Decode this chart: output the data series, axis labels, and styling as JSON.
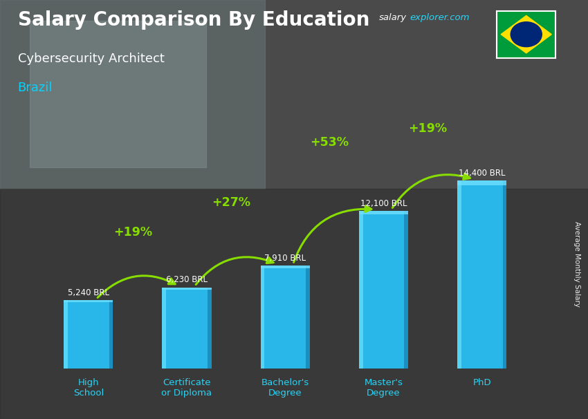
{
  "title": "Salary Comparison By Education",
  "subtitle": "Cybersecurity Architect",
  "country": "Brazil",
  "site_white": "salary",
  "site_cyan": "explorer.com",
  "categories": [
    "High\nSchool",
    "Certificate\nor Diploma",
    "Bachelor's\nDegree",
    "Master's\nDegree",
    "PhD"
  ],
  "values": [
    5240,
    6230,
    7910,
    12100,
    14400
  ],
  "value_labels": [
    "5,240 BRL",
    "6,230 BRL",
    "7,910 BRL",
    "12,100 BRL",
    "14,400 BRL"
  ],
  "pct_changes": [
    "+19%",
    "+27%",
    "+53%",
    "+19%"
  ],
  "bar_color_main": "#29b6e8",
  "bar_color_light": "#55d4f5",
  "bar_color_dark": "#1a90c0",
  "bar_color_face": "#0e78a8",
  "title_color": "#ffffff",
  "subtitle_color": "#ffffff",
  "country_color": "#00d4ff",
  "cat_label_color": "#29d4f5",
  "arrow_color": "#88dd00",
  "pct_color": "#88dd00",
  "value_color": "#ffffff",
  "site_white_color": "#ffffff",
  "site_cyan_color": "#29d4f5",
  "axis_label": "Average Monthly Salary",
  "ylim_max": 17000,
  "bg_dark": "#333333",
  "flag_green": "#009c3b",
  "flag_yellow": "#ffdf00",
  "flag_blue": "#002776"
}
